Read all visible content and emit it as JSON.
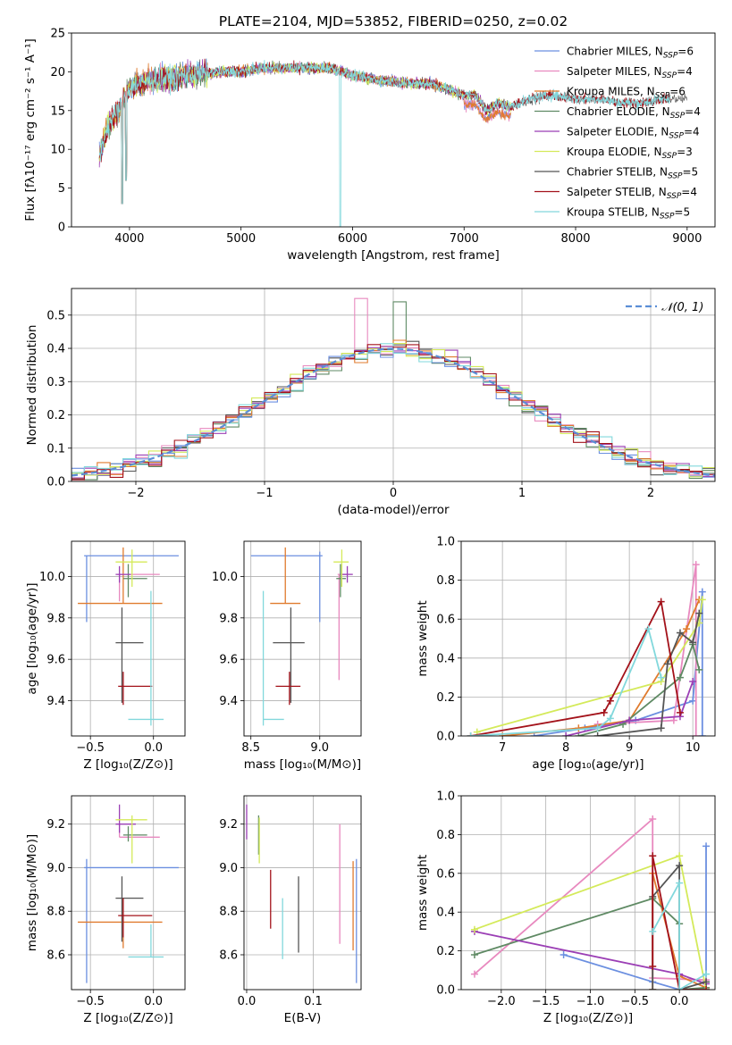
{
  "figure_title": "PLATE=2104, MJD=53852, FIBERID=0250, z=0.02",
  "series": [
    {
      "name": "Chabrier MILES",
      "nssp": "6",
      "color": "#6b8fe0"
    },
    {
      "name": "Salpeter MILES",
      "nssp": "4",
      "color": "#e889bf"
    },
    {
      "name": "Kroupa MILES",
      "nssp": "6",
      "color": "#e07b2e"
    },
    {
      "name": "Chabrier ELODIE",
      "nssp": "4",
      "color": "#5f8a64"
    },
    {
      "name": "Salpeter ELODIE",
      "nssp": "4",
      "color": "#9b3fb5"
    },
    {
      "name": "Kroupa ELODIE",
      "nssp": "3",
      "color": "#d4ea5a"
    },
    {
      "name": "Chabrier STELIB",
      "nssp": "5",
      "color": "#555555"
    },
    {
      "name": "Salpeter STELIB",
      "nssp": "4",
      "color": "#a3121a"
    },
    {
      "name": "Kroupa STELIB",
      "nssp": "5",
      "color": "#82d8dc"
    }
  ],
  "chart_data": [
    {
      "id": "spectrum",
      "type": "line",
      "xlabel": "wavelength [Angstrom, rest frame]",
      "ylabel": "Flux [fλ10⁻¹⁷ erg cm⁻² s⁻¹ A⁻¹]",
      "xlim": [
        3480,
        9250
      ],
      "ylim": [
        0,
        25
      ],
      "xticks": [
        4000,
        5000,
        6000,
        7000,
        8000,
        9000
      ],
      "yticks": [
        0,
        5,
        10,
        15,
        20,
        25
      ],
      "grid": false,
      "legend": "upper right",
      "data_profile": {
        "x": [
          3730,
          3800,
          3900,
          4000,
          4200,
          4500,
          4800,
          5000,
          5200,
          5500,
          5800,
          6000,
          6200,
          6500,
          6700,
          6900,
          7000,
          7100,
          7200,
          7300,
          7400,
          7600,
          7800,
          8000,
          8200,
          8400,
          8600,
          8800
        ],
        "y": [
          9,
          13,
          15,
          18,
          19,
          19.5,
          20,
          20,
          20.5,
          20.5,
          20.5,
          19.5,
          19,
          18.5,
          18.5,
          17.5,
          17,
          17,
          15,
          16,
          15.5,
          16.5,
          17,
          16.5,
          16.5,
          16,
          16,
          16.5
        ]
      }
    },
    {
      "id": "residuals",
      "type": "histogram",
      "xlabel": "(data-model)/error",
      "ylabel": "Normed distribution",
      "xlim": [
        -2.5,
        2.5
      ],
      "ylim": [
        0,
        0.58
      ],
      "xticks": [
        -2,
        -1,
        0,
        1,
        2
      ],
      "yticks": [
        0.0,
        0.1,
        0.2,
        0.3,
        0.4,
        0.5
      ],
      "grid": true,
      "legend": "upper right",
      "reference_curve": {
        "label": "𝒩(0, 1)",
        "mean": 0,
        "sigma": 1
      }
    },
    {
      "id": "age_vs_Z",
      "type": "errorbar",
      "xlabel": "Z [log₁₀(Z/Z⊙)]",
      "ylabel": "age  [log₁₀(age/yr)]",
      "xlim": [
        -0.65,
        0.25
      ],
      "ylim": [
        9.23,
        10.17
      ],
      "xticks": [
        -0.5,
        0.0
      ],
      "yticks": [
        9.4,
        9.6,
        9.8,
        10.0
      ],
      "grid": true,
      "points": [
        {
          "series": 0,
          "x": -0.53,
          "y": 10.1,
          "xlo": -0.55,
          "xhi": 0.2,
          "ylo": 9.78,
          "yhi": 10.1
        },
        {
          "series": 1,
          "x": -0.27,
          "y": 10.01,
          "xlo": -0.29,
          "xhi": 0.05,
          "ylo": 9.88,
          "yhi": 10.01
        },
        {
          "series": 2,
          "x": -0.24,
          "y": 9.87,
          "xlo": -0.6,
          "xhi": 0.07,
          "ylo": 9.87,
          "yhi": 10.14
        },
        {
          "series": 3,
          "x": -0.2,
          "y": 9.99,
          "xlo": -0.24,
          "xhi": -0.05,
          "ylo": 9.9,
          "yhi": 10.06
        },
        {
          "series": 4,
          "x": -0.27,
          "y": 10.01,
          "xlo": -0.3,
          "xhi": -0.18,
          "ylo": 9.97,
          "yhi": 10.05
        },
        {
          "series": 5,
          "x": -0.17,
          "y": 10.07,
          "xlo": -0.3,
          "xhi": -0.05,
          "ylo": 9.95,
          "yhi": 10.13
        },
        {
          "series": 6,
          "x": -0.25,
          "y": 9.68,
          "xlo": -0.3,
          "xhi": -0.08,
          "ylo": 9.39,
          "yhi": 9.85
        },
        {
          "series": 7,
          "x": -0.24,
          "y": 9.47,
          "xlo": -0.28,
          "xhi": -0.01,
          "ylo": 9.38,
          "yhi": 9.54
        },
        {
          "series": 8,
          "x": -0.02,
          "y": 9.31,
          "xlo": -0.2,
          "xhi": 0.08,
          "ylo": 9.28,
          "yhi": 9.93
        }
      ]
    },
    {
      "id": "age_vs_mass",
      "type": "errorbar",
      "xlabel": "mass [log₁₀(M/M⊙)]",
      "ylabel": "",
      "xlim": [
        8.45,
        9.3
      ],
      "ylim": [
        9.23,
        10.17
      ],
      "xticks": [
        8.5,
        9.0
      ],
      "yticks": [
        9.4,
        9.6,
        9.8,
        10.0
      ],
      "grid": true,
      "points": [
        {
          "series": 0,
          "x": 9.0,
          "y": 10.1,
          "xlo": 8.5,
          "xhi": 9.02,
          "ylo": 9.78,
          "yhi": 10.12
        },
        {
          "series": 1,
          "x": 9.14,
          "y": 10.01,
          "xlo": 9.13,
          "xhi": 9.2,
          "ylo": 9.5,
          "yhi": 10.01
        },
        {
          "series": 2,
          "x": 8.75,
          "y": 9.87,
          "xlo": 8.64,
          "xhi": 8.86,
          "ylo": 9.87,
          "yhi": 10.14
        },
        {
          "series": 3,
          "x": 9.15,
          "y": 9.99,
          "xlo": 9.12,
          "xhi": 9.19,
          "ylo": 9.9,
          "yhi": 10.06
        },
        {
          "series": 4,
          "x": 9.2,
          "y": 10.01,
          "xlo": 9.16,
          "xhi": 9.24,
          "ylo": 9.97,
          "yhi": 10.05
        },
        {
          "series": 5,
          "x": 9.16,
          "y": 10.07,
          "xlo": 9.1,
          "xhi": 9.21,
          "ylo": 9.95,
          "yhi": 10.13
        },
        {
          "series": 6,
          "x": 8.79,
          "y": 9.68,
          "xlo": 8.66,
          "xhi": 8.89,
          "ylo": 9.39,
          "yhi": 9.85
        },
        {
          "series": 7,
          "x": 8.78,
          "y": 9.47,
          "xlo": 8.68,
          "xhi": 8.86,
          "ylo": 9.38,
          "yhi": 9.54
        },
        {
          "series": 8,
          "x": 8.59,
          "y": 9.31,
          "xlo": 8.59,
          "xhi": 8.74,
          "ylo": 9.28,
          "yhi": 9.93
        }
      ]
    },
    {
      "id": "mass_weight_vs_age",
      "type": "line",
      "xlabel": "age  [log₁₀(age/yr)]",
      "ylabel": "mass weight",
      "xlim": [
        6.35,
        10.35
      ],
      "ylim": [
        0,
        1
      ],
      "xticks": [
        7,
        8,
        9,
        10
      ],
      "yticks": [
        0.0,
        0.2,
        0.4,
        0.6,
        0.8,
        1.0
      ],
      "grid": true,
      "lines": [
        {
          "series": 0,
          "x": [
            7.5,
            8.3,
            9.1,
            10.0,
            10.15,
            10.15
          ],
          "y": [
            0.0,
            0.04,
            0.08,
            0.18,
            0.74,
            0.0
          ]
        },
        {
          "series": 1,
          "x": [
            8.5,
            9.7,
            10.05,
            10.05
          ],
          "y": [
            0.06,
            0.08,
            0.88,
            0.0
          ]
        },
        {
          "series": 2,
          "x": [
            7.0,
            8.2,
            9.0,
            9.9,
            10.1
          ],
          "y": [
            0.0,
            0.04,
            0.08,
            0.55,
            0.7
          ]
        },
        {
          "series": 3,
          "x": [
            8.2,
            8.9,
            9.8,
            10.0,
            10.1
          ],
          "y": [
            0.0,
            0.06,
            0.3,
            0.47,
            0.34
          ]
        },
        {
          "series": 4,
          "x": [
            8.0,
            9.0,
            9.8,
            10.0
          ],
          "y": [
            0.0,
            0.08,
            0.1,
            0.28
          ]
        },
        {
          "series": 5,
          "x": [
            6.6,
            9.5,
            10.1,
            10.15
          ],
          "y": [
            0.02,
            0.28,
            0.58,
            0.7
          ]
        },
        {
          "series": 6,
          "x": [
            8.5,
            9.5,
            9.6,
            9.8,
            10.0,
            10.1
          ],
          "y": [
            0.0,
            0.04,
            0.37,
            0.53,
            0.48,
            0.63
          ]
        },
        {
          "series": 7,
          "x": [
            6.5,
            8.6,
            8.7,
            9.5,
            9.8
          ],
          "y": [
            0.0,
            0.12,
            0.18,
            0.69,
            0.12
          ]
        },
        {
          "series": 8,
          "x": [
            6.5,
            8.5,
            8.7,
            9.3,
            9.5
          ],
          "y": [
            0.0,
            0.04,
            0.09,
            0.55,
            0.3
          ]
        }
      ]
    },
    {
      "id": "mass_vs_Z",
      "type": "errorbar",
      "xlabel": "Z [log₁₀(Z/Z⊙)]",
      "ylabel": "mass [log₁₀(M/M⊙)]",
      "xlim": [
        -0.65,
        0.25
      ],
      "ylim": [
        8.44,
        9.33
      ],
      "xticks": [
        -0.5,
        0.0
      ],
      "yticks": [
        8.6,
        8.8,
        9.0,
        9.2
      ],
      "grid": true,
      "points": [
        {
          "series": 0,
          "x": -0.53,
          "y": 9.0,
          "xlo": -0.55,
          "xhi": 0.2,
          "ylo": 8.47,
          "yhi": 9.04
        },
        {
          "series": 1,
          "x": -0.27,
          "y": 9.14,
          "xlo": -0.27,
          "xhi": 0.05,
          "ylo": 9.14,
          "yhi": 9.2
        },
        {
          "series": 2,
          "x": -0.24,
          "y": 8.75,
          "xlo": -0.6,
          "xhi": 0.07,
          "ylo": 8.63,
          "yhi": 8.86
        },
        {
          "series": 3,
          "x": -0.2,
          "y": 9.15,
          "xlo": -0.24,
          "xhi": -0.05,
          "ylo": 9.12,
          "yhi": 9.19
        },
        {
          "series": 4,
          "x": -0.27,
          "y": 9.2,
          "xlo": -0.3,
          "xhi": -0.14,
          "ylo": 9.16,
          "yhi": 9.29
        },
        {
          "series": 5,
          "x": -0.17,
          "y": 9.22,
          "xlo": -0.3,
          "xhi": -0.05,
          "ylo": 9.02,
          "yhi": 9.24
        },
        {
          "series": 6,
          "x": -0.25,
          "y": 8.86,
          "xlo": -0.3,
          "xhi": -0.08,
          "ylo": 8.66,
          "yhi": 8.96
        },
        {
          "series": 7,
          "x": -0.24,
          "y": 8.78,
          "xlo": -0.28,
          "xhi": -0.01,
          "ylo": 8.68,
          "yhi": 8.86
        },
        {
          "series": 8,
          "x": -0.02,
          "y": 8.59,
          "xlo": -0.2,
          "xhi": 0.08,
          "ylo": 8.59,
          "yhi": 8.74
        }
      ]
    },
    {
      "id": "mass_vs_ebv",
      "type": "errorbar",
      "xlabel": "E(B-V)",
      "ylabel": "",
      "xlim": [
        -0.004,
        0.172
      ],
      "ylim": [
        8.44,
        9.33
      ],
      "xticks": [
        0.0,
        0.1
      ],
      "yticks": [
        8.6,
        8.8,
        9.0,
        9.2
      ],
      "grid": true,
      "points": [
        {
          "series": 0,
          "x": 0.165,
          "y": 8.75,
          "ylo": 8.47,
          "yhi": 9.04
        },
        {
          "series": 1,
          "x": 0.14,
          "y": 9.0,
          "ylo": 8.65,
          "yhi": 9.2
        },
        {
          "series": 2,
          "x": 0.16,
          "y": 8.82,
          "ylo": 8.62,
          "yhi": 9.03
        },
        {
          "series": 3,
          "x": 0.018,
          "y": 9.15,
          "ylo": 9.06,
          "yhi": 9.24
        },
        {
          "series": 4,
          "x": 0.0,
          "y": 9.2,
          "ylo": 9.13,
          "yhi": 9.29
        },
        {
          "series": 5,
          "x": 0.019,
          "y": 9.1,
          "ylo": 9.02,
          "yhi": 9.23
        },
        {
          "series": 6,
          "x": 0.078,
          "y": 8.78,
          "ylo": 8.61,
          "yhi": 8.96
        },
        {
          "series": 7,
          "x": 0.036,
          "y": 8.9,
          "ylo": 8.72,
          "yhi": 8.99
        },
        {
          "series": 8,
          "x": 0.054,
          "y": 8.72,
          "ylo": 8.58,
          "yhi": 8.86
        }
      ]
    },
    {
      "id": "mass_weight_vs_Z",
      "type": "line",
      "xlabel": "Z [log₁₀(Z/Z⊙)]",
      "ylabel": "mass weight",
      "xlim": [
        -2.45,
        0.4
      ],
      "ylim": [
        0,
        1
      ],
      "xticks": [
        -2.0,
        -1.5,
        -1.0,
        -0.5,
        0.0
      ],
      "yticks": [
        0.0,
        0.2,
        0.4,
        0.6,
        0.8,
        1.0
      ],
      "grid": true,
      "lines": [
        {
          "series": 0,
          "x": [
            -1.3,
            -0.3,
            0.0,
            0.3,
            0.3
          ],
          "y": [
            0.18,
            0.04,
            0.0,
            0.0,
            0.74
          ]
        },
        {
          "series": 1,
          "x": [
            -2.3,
            -0.3,
            -0.3,
            0.3
          ],
          "y": [
            0.08,
            0.88,
            0.06,
            0.05
          ]
        },
        {
          "series": 2,
          "x": [
            -0.3,
            -0.3,
            0.0,
            0.3
          ],
          "y": [
            0.0,
            0.6,
            0.07,
            0.01
          ]
        },
        {
          "series": 3,
          "x": [
            -2.3,
            -0.3,
            0.0,
            0.0,
            0.3
          ],
          "y": [
            0.18,
            0.47,
            0.34,
            0.0,
            0.01
          ]
        },
        {
          "series": 4,
          "x": [
            -2.3,
            0.0,
            0.3
          ],
          "y": [
            0.3,
            0.08,
            0.03
          ]
        },
        {
          "series": 5,
          "x": [
            -2.3,
            0.0,
            0.3
          ],
          "y": [
            0.31,
            0.69,
            0.0
          ]
        },
        {
          "series": 6,
          "x": [
            -0.3,
            -0.3,
            0.0,
            0.0,
            0.3
          ],
          "y": [
            0.0,
            0.48,
            0.64,
            0.0,
            0.04
          ]
        },
        {
          "series": 7,
          "x": [
            -0.3,
            -0.3,
            0.0,
            0.3
          ],
          "y": [
            0.12,
            0.69,
            0.0,
            0.0
          ]
        },
        {
          "series": 8,
          "x": [
            -0.3,
            0.0,
            0.0,
            0.3
          ],
          "y": [
            0.3,
            0.55,
            0.0,
            0.08
          ]
        }
      ]
    }
  ]
}
